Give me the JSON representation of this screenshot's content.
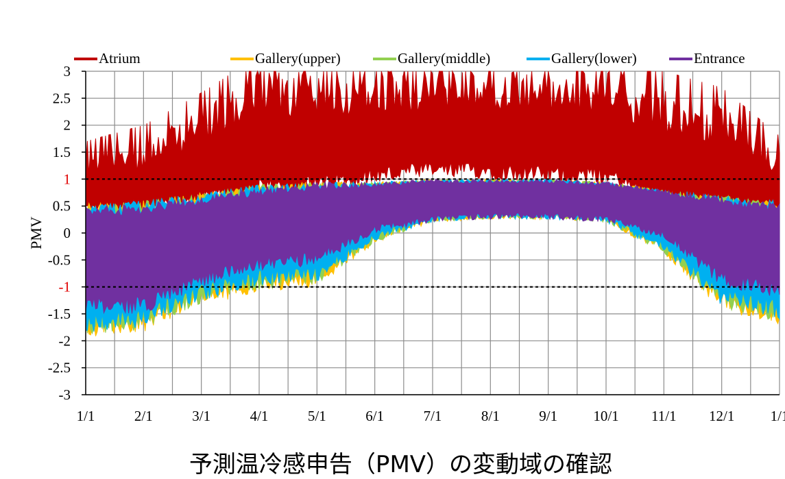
{
  "chart_data": {
    "type": "area",
    "ylabel": "PMV",
    "xlabel": "",
    "ylim": [
      -3,
      3
    ],
    "ytick_labels": [
      "3",
      "2.5",
      "2",
      "1.5",
      "1",
      "0.5",
      "0",
      "-0.5",
      "-1",
      "-1.5",
      "-2",
      "-2.5",
      "-3"
    ],
    "highlighted_ticks": [
      "1",
      "-1"
    ],
    "reference_lines": [
      1,
      -1
    ],
    "categories": [
      "1/1",
      "2/1",
      "3/1",
      "4/1",
      "5/1",
      "6/1",
      "7/1",
      "8/1",
      "9/1",
      "10/1",
      "11/1",
      "12/1",
      "1/1"
    ],
    "grid": true,
    "legend_position": "top",
    "series": [
      {
        "name": "Atrium",
        "color": "#c00000",
        "x": [
          "1/1",
          "2/1",
          "3/1",
          "4/1",
          "5/1",
          "6/1",
          "7/1",
          "8/1",
          "9/1",
          "10/1",
          "11/1",
          "12/1",
          "1/1"
        ],
        "max": [
          1.4,
          1.7,
          2.3,
          3.0,
          3.0,
          3.0,
          3.0,
          3.0,
          3.0,
          3.0,
          2.7,
          2.4,
          1.5
        ],
        "min": [
          0.4,
          0.3,
          0.5,
          0.6,
          0.7,
          0.9,
          1.0,
          1.0,
          0.9,
          0.9,
          0.4,
          0.3,
          0.3
        ]
      },
      {
        "name": "Gallery(upper)",
        "color": "#ffc000",
        "x": [
          "1/1",
          "2/1",
          "3/1",
          "4/1",
          "5/1",
          "6/1",
          "7/1",
          "8/1",
          "9/1",
          "10/1",
          "11/1",
          "12/1",
          "1/1"
        ],
        "max": [
          0.55,
          0.6,
          0.75,
          0.9,
          0.95,
          0.95,
          1.0,
          1.0,
          1.0,
          0.95,
          0.8,
          0.7,
          0.6
        ],
        "min": [
          -1.95,
          -1.85,
          -1.35,
          -1.1,
          -1.0,
          -0.2,
          0.2,
          0.25,
          0.25,
          0.2,
          -0.4,
          -1.45,
          -1.7
        ]
      },
      {
        "name": "Gallery(middle)",
        "color": "#92d050",
        "x": [
          "1/1",
          "2/1",
          "3/1",
          "4/1",
          "5/1",
          "6/1",
          "7/1",
          "8/1",
          "9/1",
          "10/1",
          "11/1",
          "12/1",
          "1/1"
        ],
        "max": [
          0.55,
          0.6,
          0.75,
          0.9,
          0.95,
          0.95,
          1.0,
          1.0,
          1.0,
          0.95,
          0.8,
          0.7,
          0.6
        ],
        "min": [
          -1.9,
          -1.8,
          -1.3,
          -1.05,
          -0.95,
          -0.18,
          0.2,
          0.25,
          0.25,
          0.2,
          -0.38,
          -1.4,
          -1.65
        ]
      },
      {
        "name": "Gallery(lower)",
        "color": "#00b0f0",
        "x": [
          "1/1",
          "2/1",
          "3/1",
          "4/1",
          "5/1",
          "6/1",
          "7/1",
          "8/1",
          "9/1",
          "10/1",
          "11/1",
          "12/1",
          "1/1"
        ],
        "max": [
          0.55,
          0.6,
          0.75,
          0.9,
          0.95,
          0.95,
          1.0,
          1.0,
          1.0,
          0.95,
          0.8,
          0.7,
          0.6
        ],
        "min": [
          -1.85,
          -1.75,
          -1.25,
          -1.0,
          -0.9,
          -0.15,
          0.2,
          0.25,
          0.25,
          0.2,
          -0.35,
          -1.35,
          -1.6
        ]
      },
      {
        "name": "Entrance",
        "color": "#7030a0",
        "x": [
          "1/1",
          "2/1",
          "3/1",
          "4/1",
          "5/1",
          "6/1",
          "7/1",
          "8/1",
          "9/1",
          "10/1",
          "11/1",
          "12/1",
          "1/1"
        ],
        "max": [
          0.5,
          0.55,
          0.7,
          0.85,
          0.95,
          0.95,
          1.0,
          1.0,
          1.0,
          0.95,
          0.8,
          0.7,
          0.55
        ],
        "min": [
          -1.5,
          -1.5,
          -1.0,
          -0.7,
          -0.6,
          0.0,
          0.2,
          0.25,
          0.25,
          0.2,
          -0.1,
          -1.0,
          -1.2
        ]
      }
    ]
  },
  "caption": {
    "text": "予測温冷感申告（PMV）の変動域の確認"
  }
}
